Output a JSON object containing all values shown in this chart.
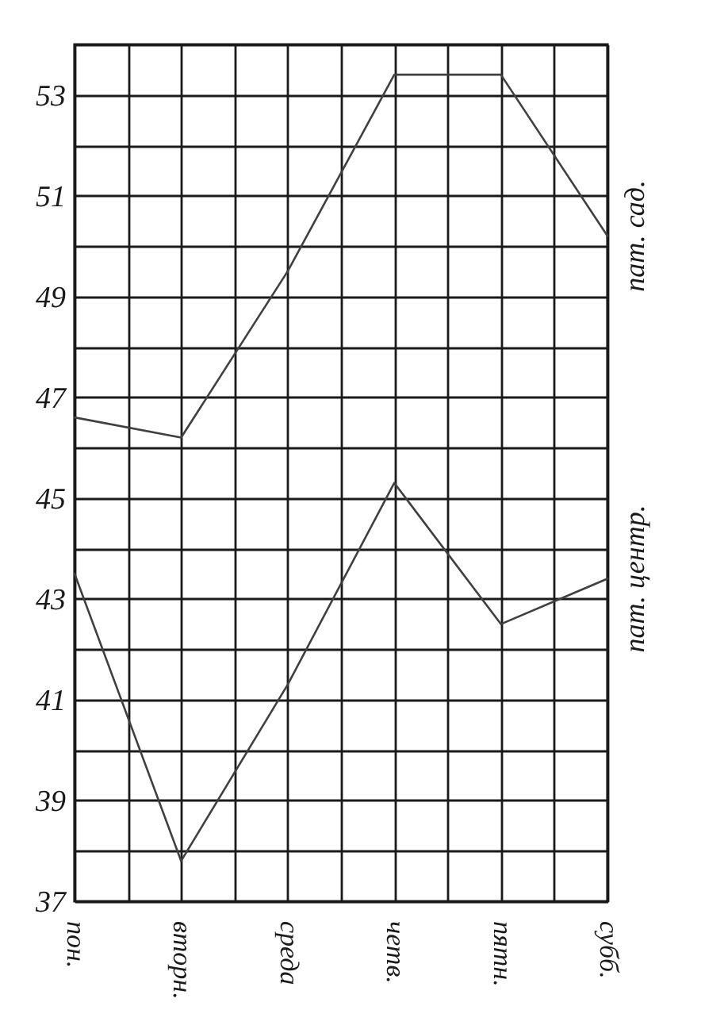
{
  "chart_data": {
    "type": "line",
    "categories": [
      "пон.",
      "вторн.",
      "среда",
      "четв.",
      "пятн.",
      "субб."
    ],
    "series": [
      {
        "name": "пат. сад.",
        "color": "#404040",
        "values": [
          46.6,
          46.2,
          49.5,
          53.4,
          53.4,
          50.2
        ]
      },
      {
        "name": "пат. центр.",
        "color": "#404040",
        "values": [
          43.5,
          37.8,
          41.3,
          45.3,
          42.5,
          43.4
        ]
      }
    ],
    "ylim": [
      37,
      54
    ],
    "yticks": [
      37,
      {
        "value": 38,
        "label": null
      },
      39,
      {
        "value": 40,
        "label": null
      },
      41,
      {
        "value": 42,
        "label": null
      },
      43,
      {
        "value": 44,
        "label": null
      },
      45,
      {
        "value": 46,
        "label": null
      },
      47,
      {
        "value": 48,
        "label": null
      },
      49,
      {
        "value": 50,
        "label": null
      },
      51,
      {
        "value": 52,
        "label": null
      },
      53,
      {
        "value": 54,
        "label": null
      }
    ],
    "grid": true,
    "legend": false,
    "marker": "none",
    "line_style": "solid"
  }
}
